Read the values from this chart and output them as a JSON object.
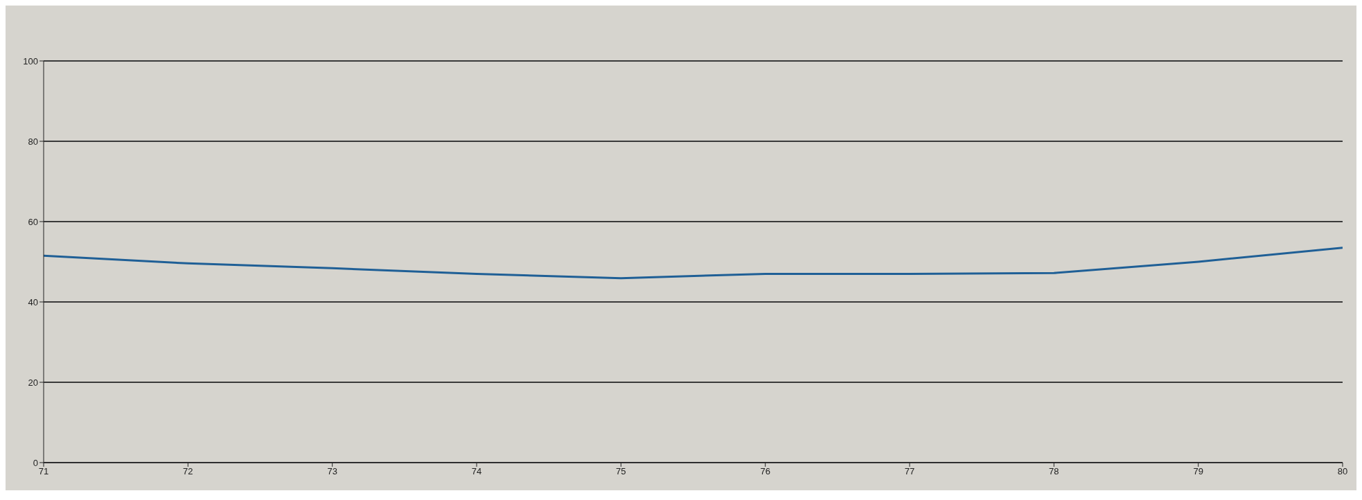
{
  "chart_data": {
    "type": "line",
    "x": [
      71,
      72,
      73,
      74,
      75,
      76,
      77,
      78,
      79,
      80
    ],
    "series": [
      {
        "color": "#1f5f96",
        "values": [
          51.5,
          49.6,
          48.4,
          47,
          45.9,
          47,
          47,
          47.2,
          50,
          53.5
        ]
      }
    ],
    "xlim": [
      71,
      80
    ],
    "xticks": [
      71,
      72,
      73,
      74,
      75,
      76,
      77,
      78,
      79,
      80
    ],
    "ylim": [
      0,
      100
    ],
    "yticks": [
      0,
      20,
      40,
      60,
      80,
      100
    ],
    "grid": "y",
    "legend": false,
    "marker": "none",
    "line_style": "solid"
  }
}
